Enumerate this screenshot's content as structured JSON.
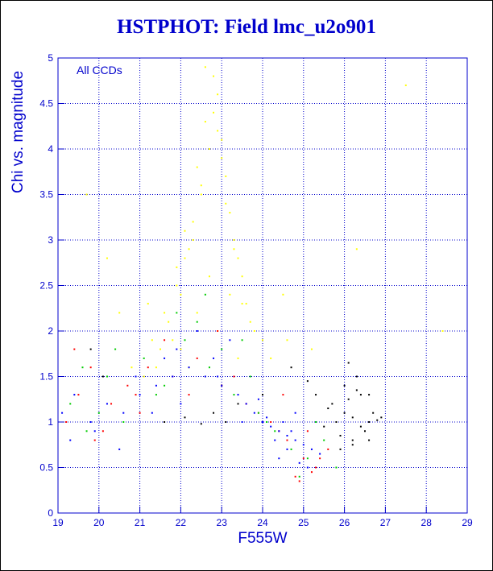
{
  "chart_data": {
    "type": "scatter",
    "title": "HSTPHOT: Field lmc_u2o901",
    "xlabel": "F555W",
    "ylabel": "Chi vs. magnitude",
    "annotation": "All CCDs",
    "xlim": [
      19,
      29
    ],
    "ylim": [
      0,
      5
    ],
    "x_ticks": [
      "19",
      "20",
      "21",
      "22",
      "23",
      "24",
      "25",
      "26",
      "27",
      "28",
      "29"
    ],
    "y_ticks": [
      "0",
      "0.5",
      "1",
      "1.5",
      "2",
      "2.5",
      "3",
      "3.5",
      "4",
      "4.5",
      "5"
    ],
    "grid": true,
    "point_colors": {
      "yellow": "#ffff00",
      "black": "#000000",
      "red": "#ff0000",
      "green": "#00cc00",
      "blue": "#0000ff"
    },
    "series": [
      {
        "color": "yellow",
        "x": [
          21.6,
          21.9,
          22.1,
          22.3,
          22.5,
          22.7,
          22.9,
          23.1,
          23.3,
          23.5,
          21.8,
          22.0,
          22.4,
          22.6,
          22.8,
          23.0,
          23.2,
          23.4,
          21.5,
          21.7,
          22.2,
          22.9,
          23.6,
          23.8,
          21.4,
          22.1,
          22.6,
          23.1,
          23.7,
          24.0,
          22.3,
          22.8,
          23.3,
          21.9,
          22.5,
          23.0,
          22.4,
          22.7,
          23.2,
          22.0,
          22.9,
          23.5,
          24.2,
          21.3,
          21.2,
          20.8,
          20.5,
          24.5,
          25.2,
          26.3,
          27.5,
          28.4,
          19.7,
          20.2,
          22.6,
          23.4,
          22.2,
          23.0,
          21.1,
          24.6
        ],
        "y": [
          2.2,
          2.5,
          2.8,
          3.2,
          3.6,
          4.0,
          4.6,
          3.4,
          3.0,
          2.6,
          1.9,
          2.4,
          3.8,
          4.3,
          4.8,
          3.9,
          3.3,
          2.8,
          1.8,
          2.1,
          2.9,
          4.2,
          2.3,
          2.0,
          1.6,
          3.1,
          4.9,
          3.7,
          2.1,
          1.9,
          3.0,
          4.4,
          2.9,
          2.7,
          3.5,
          4.1,
          2.2,
          2.6,
          2.4,
          1.8,
          2.0,
          2.3,
          1.7,
          1.9,
          2.3,
          1.6,
          2.2,
          2.4,
          1.8,
          2.9,
          4.7,
          2.0,
          3.5,
          2.8,
          1.5,
          1.7,
          1.6,
          1.4,
          1.5,
          1.9
        ]
      },
      {
        "color": "black",
        "x": [
          25.8,
          26.0,
          26.2,
          26.4,
          26.6,
          26.8,
          26.1,
          26.3,
          25.9,
          26.5,
          26.7,
          25.7,
          26.0,
          26.2,
          26.4,
          26.6,
          25.6,
          25.9,
          26.3,
          21.6,
          22.1,
          22.8,
          23.4,
          24.0,
          19.8,
          20.1,
          25.5,
          25.3,
          26.9,
          26.1,
          24.7,
          25.1,
          22.5,
          23.1,
          26.6,
          26.2
        ],
        "y": [
          1.0,
          1.1,
          1.05,
          0.95,
          1.0,
          1.02,
          1.25,
          1.35,
          0.85,
          0.9,
          1.1,
          1.2,
          1.4,
          0.75,
          1.3,
          0.8,
          1.15,
          0.7,
          1.5,
          1.0,
          1.05,
          1.1,
          1.2,
          1.3,
          1.8,
          1.5,
          0.95,
          1.3,
          1.05,
          1.65,
          1.6,
          1.45,
          0.98,
          1.0,
          1.3,
          0.8
        ]
      },
      {
        "color": "red",
        "x": [
          19.2,
          19.5,
          19.9,
          20.3,
          20.7,
          21.2,
          21.8,
          22.4,
          23.0,
          23.6,
          24.2,
          24.6,
          25.0,
          25.3,
          25.6,
          24.8,
          24.4,
          23.9,
          19.4,
          20.1,
          20.9,
          21.6,
          22.2,
          22.9,
          24.5,
          25.1,
          25.4,
          23.3,
          21.0,
          19.8,
          24.9,
          25.2
        ],
        "y": [
          1.0,
          1.3,
          0.8,
          1.2,
          1.4,
          1.6,
          1.5,
          1.7,
          1.4,
          1.2,
          1.0,
          0.8,
          0.6,
          0.5,
          0.7,
          0.4,
          0.9,
          1.1,
          1.8,
          0.9,
          1.3,
          1.9,
          1.3,
          2.0,
          1.3,
          0.9,
          0.6,
          1.5,
          1.1,
          1.6,
          0.35,
          0.45
        ]
      },
      {
        "color": "green",
        "x": [
          19.3,
          19.7,
          20.2,
          20.6,
          21.1,
          21.6,
          22.1,
          22.7,
          23.3,
          23.9,
          24.3,
          24.7,
          25.1,
          25.5,
          25.8,
          19.6,
          20.4,
          21.4,
          22.4,
          23.0,
          23.7,
          24.1,
          24.9,
          25.3,
          21.9,
          23.5,
          20.0,
          22.6
        ],
        "y": [
          1.2,
          0.9,
          1.5,
          1.0,
          1.7,
          1.4,
          1.9,
          1.6,
          1.3,
          1.1,
          0.9,
          0.7,
          0.6,
          0.8,
          0.5,
          1.6,
          1.8,
          1.3,
          2.1,
          1.8,
          1.5,
          1.0,
          0.4,
          1.0,
          2.2,
          1.9,
          1.1,
          2.4
        ]
      },
      {
        "color": "blue",
        "x": [
          19.1,
          19.4,
          19.8,
          20.2,
          20.6,
          21.0,
          21.4,
          21.8,
          22.2,
          22.6,
          23.0,
          23.4,
          23.8,
          24.0,
          24.2,
          24.4,
          24.6,
          24.8,
          25.0,
          25.2,
          25.4,
          24.1,
          24.3,
          24.5,
          24.7,
          24.9,
          23.9,
          23.6,
          22.8,
          21.9,
          20.9,
          19.9,
          19.3,
          20.5,
          21.3,
          22.0,
          22.9,
          23.5,
          24.6,
          25.1,
          24.4,
          24.8,
          23.2,
          22.4,
          21.6
        ],
        "y": [
          1.1,
          1.3,
          1.0,
          1.2,
          1.1,
          1.3,
          1.4,
          1.5,
          1.6,
          1.5,
          1.4,
          1.3,
          1.1,
          1.0,
          0.95,
          0.9,
          0.85,
          0.8,
          0.75,
          0.7,
          0.65,
          1.05,
          0.8,
          1.0,
          0.9,
          0.55,
          1.25,
          1.2,
          1.7,
          1.8,
          1.5,
          0.9,
          0.8,
          0.7,
          1.1,
          1.2,
          1.5,
          1.0,
          0.7,
          0.5,
          0.6,
          1.1,
          1.9,
          2.0,
          1.7
        ]
      }
    ]
  }
}
